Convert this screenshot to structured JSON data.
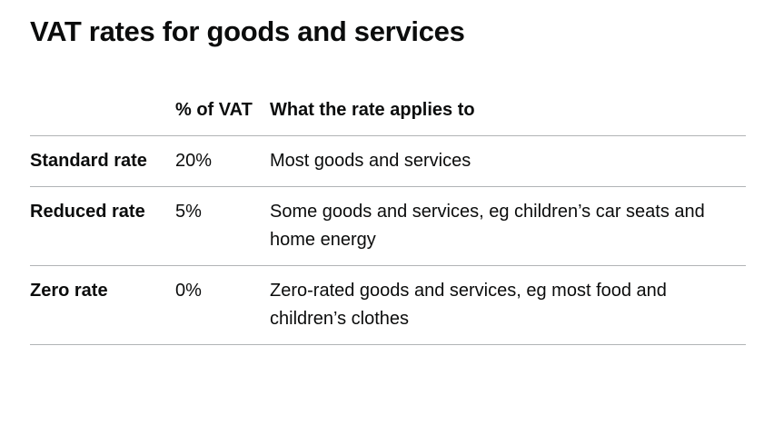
{
  "title": "VAT rates for goods and services",
  "table": {
    "headers": [
      "",
      "% of VAT",
      "What the rate applies to"
    ],
    "rows": [
      {
        "rate": "Standard rate",
        "percent": "20%",
        "applies_to": "Most goods and services"
      },
      {
        "rate": "Reduced rate",
        "percent": "5%",
        "applies_to": "Some goods and services, eg children’s car seats and home energy"
      },
      {
        "rate": "Zero rate",
        "percent": "0%",
        "applies_to": "Zero-rated goods and services, eg most food and children’s clothes"
      }
    ]
  }
}
